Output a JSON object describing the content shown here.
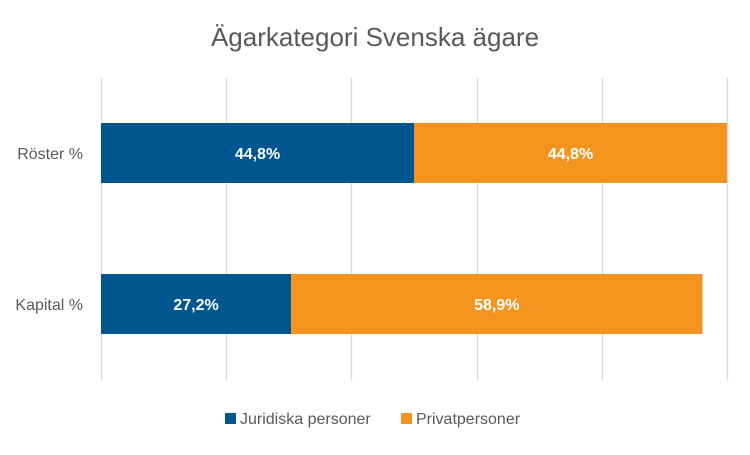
{
  "chart_data": {
    "type": "bar",
    "orientation": "horizontal",
    "stacked": true,
    "title": "Ägarkategori Svenska ägare",
    "categories": [
      "Röster %",
      "Kapital %"
    ],
    "series": [
      {
        "name": "Juridiska personer",
        "color": "#00568F",
        "values": [
          44.8,
          27.2
        ],
        "labels": [
          "44,8%",
          "27,2%"
        ]
      },
      {
        "name": "Privatpersoner",
        "color": "#F2941D",
        "values": [
          44.8,
          58.9
        ],
        "labels": [
          "44,8%",
          "58,9%"
        ]
      }
    ],
    "xlim": [
      0,
      89.6
    ],
    "grid": true,
    "legend": "bottom"
  }
}
